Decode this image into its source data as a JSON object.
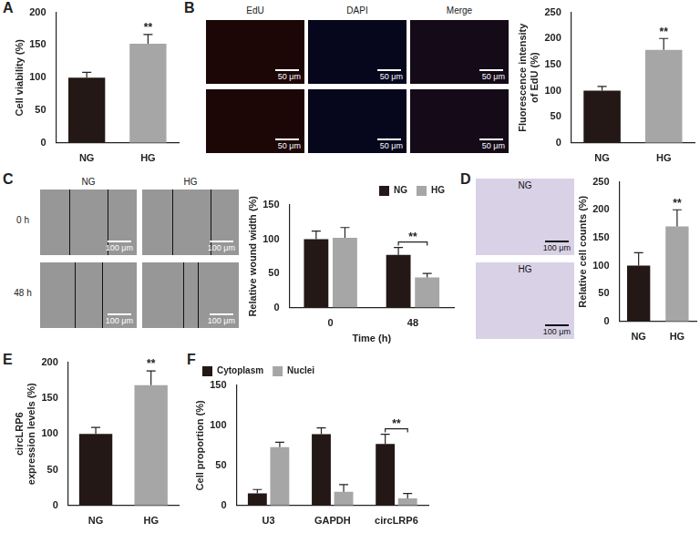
{
  "chart_data": [
    {
      "panel": "A",
      "type": "bar",
      "y_label": "Cell viability (%)",
      "categories": [
        "NG",
        "HG"
      ],
      "values": [
        100,
        152
      ],
      "errors": [
        8,
        14
      ],
      "colors": [
        "#231815",
        "#a6a6a6"
      ],
      "ylim": [
        0,
        200
      ],
      "yticks": [
        0,
        50,
        100,
        150,
        200
      ],
      "grid": false,
      "annotations": [
        {
          "text": "**",
          "category": "HG"
        }
      ]
    },
    {
      "panel": "B",
      "type": "bar",
      "y_label": [
        "Fluorescence intensity",
        "of EdU (%)"
      ],
      "categories": [
        "NG",
        "HG"
      ],
      "values": [
        100,
        178
      ],
      "errors": [
        8,
        22
      ],
      "colors": [
        "#231815",
        "#a6a6a6"
      ],
      "ylim": [
        0,
        250
      ],
      "yticks": [
        0,
        50,
        100,
        150,
        200,
        250
      ],
      "grid": false,
      "annotations": [
        {
          "text": "**",
          "category": "HG"
        }
      ]
    },
    {
      "panel": "C",
      "type": "bar",
      "y_label": "Relative wound width (%)",
      "x_label": "Time (h)",
      "categories": [
        "0",
        "48"
      ],
      "series": [
        {
          "name": "NG",
          "color": "#231815",
          "values": [
            100,
            77
          ],
          "errors": [
            12,
            11
          ]
        },
        {
          "name": "HG",
          "color": "#a6a6a6",
          "values": [
            102,
            44
          ],
          "errors": [
            15,
            6
          ]
        }
      ],
      "ylim": [
        0,
        150
      ],
      "yticks": [
        0,
        50,
        100,
        150
      ],
      "grid": false,
      "legend": "upper right",
      "annotations": [
        {
          "text": "**",
          "category": "48"
        }
      ]
    },
    {
      "panel": "D",
      "type": "bar",
      "y_label": "Relative cell counts (%)",
      "categories": [
        "NG",
        "HG"
      ],
      "values": [
        100,
        170
      ],
      "errors": [
        23,
        30
      ],
      "colors": [
        "#231815",
        "#a6a6a6"
      ],
      "ylim": [
        0,
        250
      ],
      "yticks": [
        0,
        50,
        100,
        150,
        200,
        250
      ],
      "grid": false,
      "annotations": [
        {
          "text": "**",
          "category": "HG"
        }
      ]
    },
    {
      "panel": "E",
      "type": "bar",
      "y_label": [
        "circLRP6",
        "expression levels (%)"
      ],
      "categories": [
        "NG",
        "HG"
      ],
      "values": [
        100,
        168
      ],
      "errors": [
        9,
        20
      ],
      "colors": [
        "#231815",
        "#a6a6a6"
      ],
      "ylim": [
        0,
        200
      ],
      "yticks": [
        0,
        50,
        100,
        150,
        200
      ],
      "grid": false,
      "annotations": [
        {
          "text": "**",
          "category": "HG"
        }
      ]
    },
    {
      "panel": "F",
      "type": "bar",
      "y_label": "Cell proportion (%)",
      "categories": [
        "U3",
        "GAPDH",
        "circLRP6"
      ],
      "series": [
        {
          "name": "Cytoplasm",
          "color": "#231815",
          "values": [
            15,
            89,
            77
          ],
          "errors": [
            5,
            8,
            12
          ]
        },
        {
          "name": "Nuclei",
          "color": "#a6a6a6",
          "values": [
            73,
            17,
            9
          ],
          "errors": [
            6,
            9,
            6
          ]
        }
      ],
      "ylim": [
        0,
        150
      ],
      "yticks": [
        0,
        50,
        100,
        150
      ],
      "grid": false,
      "legend": "upper left",
      "annotations": [
        {
          "text": "**",
          "category": "circLRP6"
        }
      ]
    }
  ],
  "images": [
    {
      "panel": "B",
      "headers": [
        "EdU",
        "DAPI",
        "Merge"
      ],
      "scale_bar": "50 μm"
    },
    {
      "panel": "C",
      "headers": [
        "NG",
        "HG"
      ],
      "rows": [
        "0 h",
        "48 h"
      ],
      "scale_bar": "100 μm"
    },
    {
      "panel": "D",
      "labels": [
        "NG",
        "HG"
      ],
      "scale_bar": "100 μm"
    }
  ]
}
